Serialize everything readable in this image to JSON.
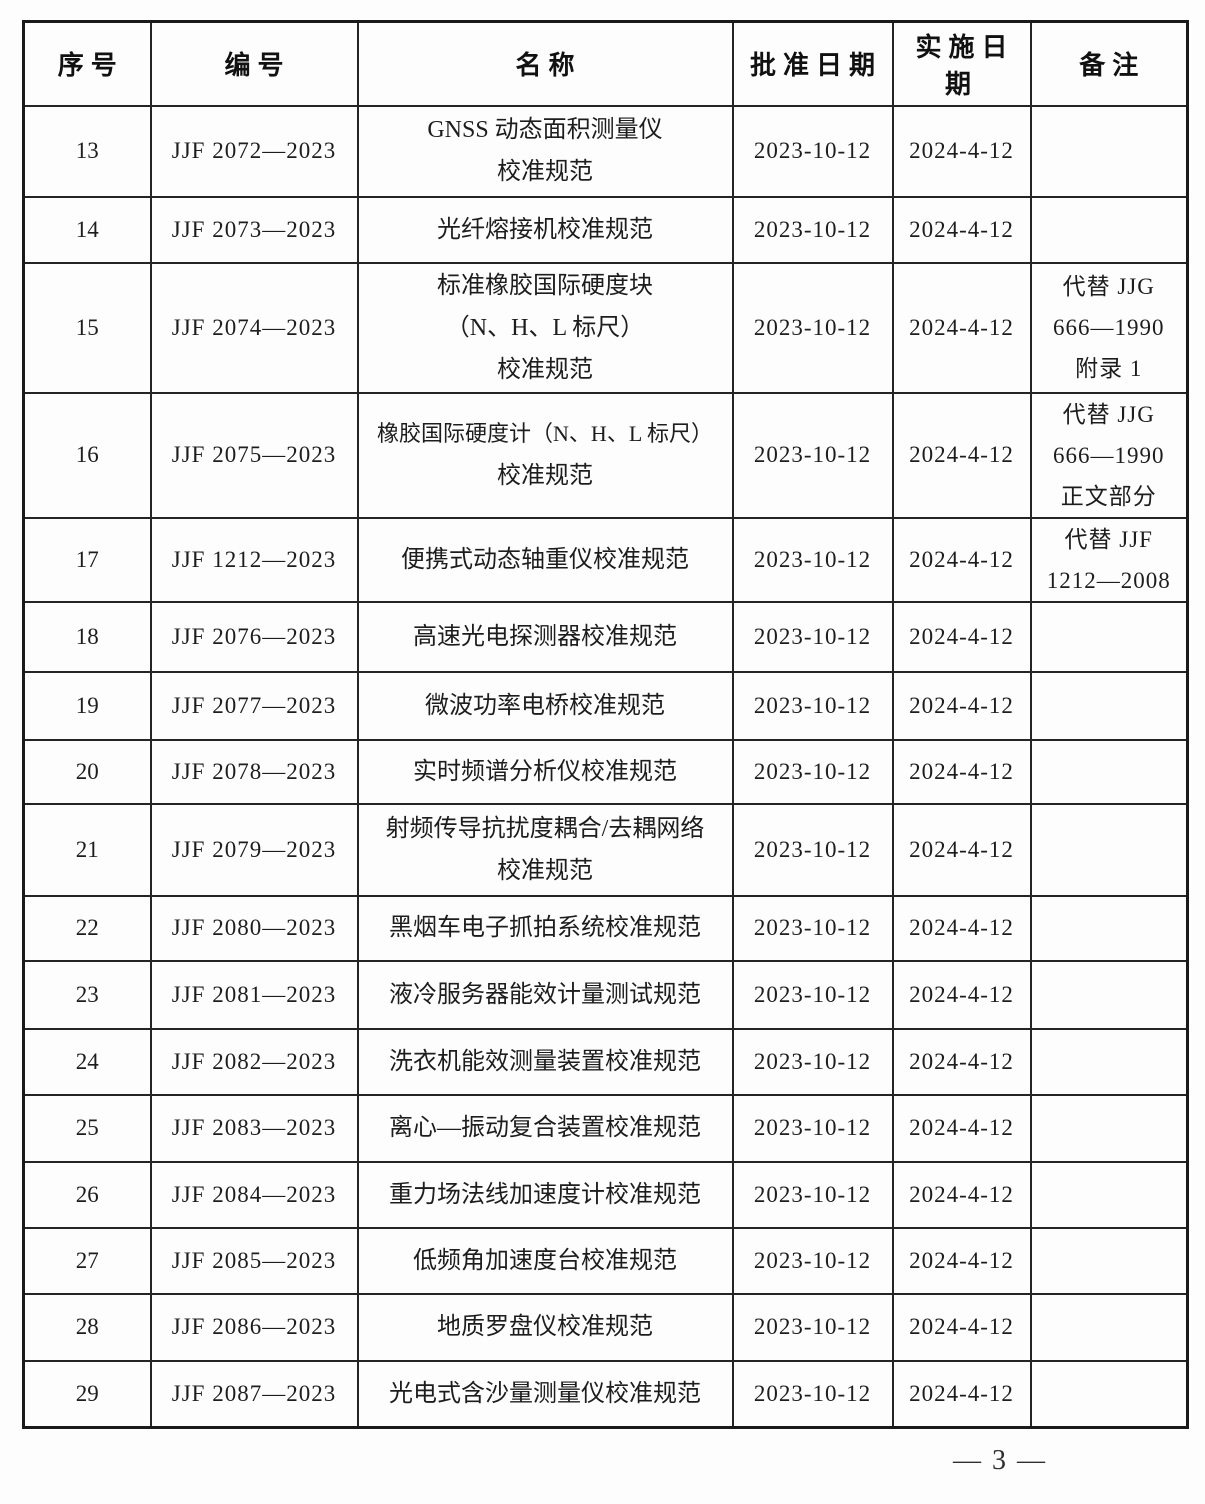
{
  "table": {
    "headers": [
      "序号",
      "编号",
      "名称",
      "批准日期",
      "实施日期",
      "备注"
    ],
    "rows": [
      {
        "no": "13",
        "code": "JJF 2072—2023",
        "name_lines": [
          "GNSS 动态面积测量仪",
          "校准规范"
        ],
        "approval_date": "2023-10-12",
        "implementation_date": "2024-4-12",
        "remark_lines": []
      },
      {
        "no": "14",
        "code": "JJF 2073—2023",
        "name_lines": [
          "光纤熔接机校准规范"
        ],
        "approval_date": "2023-10-12",
        "implementation_date": "2024-4-12",
        "remark_lines": []
      },
      {
        "no": "15",
        "code": "JJF 2074—2023",
        "name_lines": [
          "标准橡胶国际硬度块",
          "（N、H、L 标尺）",
          "校准规范"
        ],
        "approval_date": "2023-10-12",
        "implementation_date": "2024-4-12",
        "remark_lines": [
          "代替 JJG",
          "666—1990",
          "附录 1"
        ]
      },
      {
        "no": "16",
        "code": "JJF 2075—2023",
        "name_lines": [
          "橡胶国际硬度计（N、H、L 标尺）",
          "校准规范"
        ],
        "approval_date": "2023-10-12",
        "implementation_date": "2024-4-12",
        "remark_lines": [
          "代替 JJG",
          "666—1990",
          "正文部分"
        ]
      },
      {
        "no": "17",
        "code": "JJF 1212—2023",
        "name_lines": [
          "便携式动态轴重仪校准规范"
        ],
        "approval_date": "2023-10-12",
        "implementation_date": "2024-4-12",
        "remark_lines": [
          "代替 JJF",
          "1212—2008"
        ]
      },
      {
        "no": "18",
        "code": "JJF 2076—2023",
        "name_lines": [
          "高速光电探测器校准规范"
        ],
        "approval_date": "2023-10-12",
        "implementation_date": "2024-4-12",
        "remark_lines": []
      },
      {
        "no": "19",
        "code": "JJF 2077—2023",
        "name_lines": [
          "微波功率电桥校准规范"
        ],
        "approval_date": "2023-10-12",
        "implementation_date": "2024-4-12",
        "remark_lines": []
      },
      {
        "no": "20",
        "code": "JJF 2078—2023",
        "name_lines": [
          "实时频谱分析仪校准规范"
        ],
        "approval_date": "2023-10-12",
        "implementation_date": "2024-4-12",
        "remark_lines": []
      },
      {
        "no": "21",
        "code": "JJF 2079—2023",
        "name_lines": [
          "射频传导抗扰度耦合/去耦网络",
          "校准规范"
        ],
        "approval_date": "2023-10-12",
        "implementation_date": "2024-4-12",
        "remark_lines": []
      },
      {
        "no": "22",
        "code": "JJF 2080—2023",
        "name_lines": [
          "黑烟车电子抓拍系统校准规范"
        ],
        "approval_date": "2023-10-12",
        "implementation_date": "2024-4-12",
        "remark_lines": []
      },
      {
        "no": "23",
        "code": "JJF 2081—2023",
        "name_lines": [
          "液冷服务器能效计量测试规范"
        ],
        "approval_date": "2023-10-12",
        "implementation_date": "2024-4-12",
        "remark_lines": []
      },
      {
        "no": "24",
        "code": "JJF 2082—2023",
        "name_lines": [
          "洗衣机能效测量装置校准规范"
        ],
        "approval_date": "2023-10-12",
        "implementation_date": "2024-4-12",
        "remark_lines": []
      },
      {
        "no": "25",
        "code": "JJF 2083—2023",
        "name_lines": [
          "离心—振动复合装置校准规范"
        ],
        "approval_date": "2023-10-12",
        "implementation_date": "2024-4-12",
        "remark_lines": []
      },
      {
        "no": "26",
        "code": "JJF 2084—2023",
        "name_lines": [
          "重力场法线加速度计校准规范"
        ],
        "approval_date": "2023-10-12",
        "implementation_date": "2024-4-12",
        "remark_lines": []
      },
      {
        "no": "27",
        "code": "JJF 2085—2023",
        "name_lines": [
          "低频角加速度台校准规范"
        ],
        "approval_date": "2023-10-12",
        "implementation_date": "2024-4-12",
        "remark_lines": []
      },
      {
        "no": "28",
        "code": "JJF 2086—2023",
        "name_lines": [
          "地质罗盘仪校准规范"
        ],
        "approval_date": "2023-10-12",
        "implementation_date": "2024-4-12",
        "remark_lines": []
      },
      {
        "no": "29",
        "code": "JJF 2087—2023",
        "name_lines": [
          "光电式含沙量测量仪校准规范"
        ],
        "approval_date": "2023-10-12",
        "implementation_date": "2024-4-12",
        "remark_lines": []
      }
    ]
  },
  "footer": {
    "page_number": "— 3 —"
  }
}
